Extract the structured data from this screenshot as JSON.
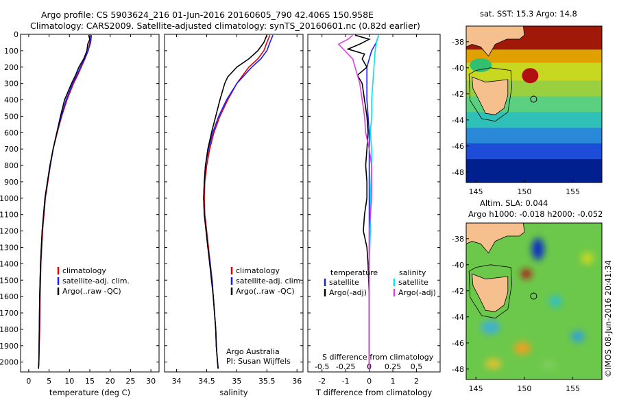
{
  "header": {
    "line1": "Argo profile: CS 5903624_216 01-Jun-2016 20160605_790 42.406S 150.958E",
    "line2": "Climatology: CARS2009. Satellite-adjusted climatology: synTS_20160601.nc (0.82d earlier)"
  },
  "colors": {
    "climatology": "#e00000",
    "satellite": "#1a1aff",
    "argo": "#000000",
    "sal_satellite": "#00e5ee",
    "sal_argo": "#e040e0",
    "land": "#f5c08e"
  },
  "chart_data": [
    {
      "type": "line",
      "panel": "temperature",
      "xlabel": "temperature (deg C)",
      "xlim": [
        -2,
        32
      ],
      "xticks": [
        0,
        5,
        10,
        15,
        20,
        25,
        30
      ],
      "ylim": [
        2060,
        0
      ],
      "yticks": [
        0,
        100,
        200,
        300,
        400,
        500,
        600,
        700,
        800,
        900,
        1000,
        1100,
        1200,
        1300,
        1400,
        1500,
        1600,
        1700,
        1800,
        1900,
        2000
      ],
      "legend": [
        "climatology",
        "satellite-adj. clim.",
        "Argo(..raw -QC)"
      ],
      "series": [
        {
          "name": "climatology",
          "depth": [
            5,
            50,
            100,
            150,
            200,
            250,
            300,
            400,
            500,
            600,
            700,
            800,
            900,
            1000,
            1200,
            1400,
            1600,
            1800,
            2000,
            2040
          ],
          "values": [
            15.3,
            15.0,
            14.6,
            13.8,
            12.9,
            12.0,
            11.0,
            9.4,
            8.1,
            7.0,
            6.0,
            5.3,
            4.7,
            4.1,
            3.4,
            3.0,
            2.8,
            2.7,
            2.5,
            2.4
          ]
        },
        {
          "name": "satellite-adj. clim.",
          "depth": [
            5,
            50,
            100,
            150,
            200,
            250,
            300,
            400,
            500,
            600,
            700,
            800,
            900,
            1000,
            1200,
            1400,
            1600,
            1800,
            2000,
            2040
          ],
          "values": [
            15.4,
            15.2,
            14.6,
            13.7,
            12.7,
            11.8,
            10.8,
            9.2,
            8.0,
            6.9,
            6.0,
            5.3,
            4.6,
            4.0,
            3.3,
            2.9,
            2.7,
            2.6,
            2.5,
            2.4
          ]
        },
        {
          "name": "Argo(..raw -QC)",
          "depth": [
            5,
            30,
            60,
            100,
            150,
            200,
            250,
            300,
            400,
            500,
            600,
            700,
            800,
            900,
            1000,
            1200,
            1400,
            1600,
            1800,
            2000,
            2040
          ],
          "values": [
            14.7,
            15.0,
            14.5,
            14.3,
            13.5,
            12.3,
            11.5,
            10.5,
            8.8,
            7.8,
            6.9,
            6.0,
            5.2,
            4.6,
            4.0,
            3.3,
            2.9,
            2.7,
            2.6,
            2.5,
            2.4
          ]
        }
      ]
    },
    {
      "type": "line",
      "panel": "salinity",
      "xlabel": "salinity",
      "xlim": [
        33.8,
        36.1
      ],
      "xticks": [
        34,
        34.5,
        35,
        35.5,
        36
      ],
      "ylim": [
        2060,
        0
      ],
      "legend": [
        "climatology",
        "satellite-adj. clim.",
        "Argo(..raw -QC)"
      ],
      "annotation": [
        "Argo Australia",
        "PI: Susan Wijffels"
      ],
      "series": [
        {
          "name": "climatology",
          "depth": [
            5,
            50,
            100,
            150,
            200,
            300,
            400,
            500,
            600,
            700,
            800,
            900,
            1000,
            1100,
            1200,
            1300,
            1400,
            1500,
            1600,
            1700,
            1800,
            1900,
            2000,
            2040
          ],
          "values": [
            35.55,
            35.5,
            35.45,
            35.35,
            35.2,
            35.0,
            34.85,
            34.72,
            34.62,
            34.55,
            34.5,
            34.47,
            34.46,
            34.47,
            34.5,
            34.53,
            34.56,
            34.59,
            34.61,
            34.63,
            34.65,
            34.66,
            34.68,
            34.69
          ]
        },
        {
          "name": "satellite-adj. clim.",
          "depth": [
            5,
            50,
            100,
            150,
            200,
            300,
            400,
            500,
            600,
            700,
            800,
            900,
            1000,
            1100,
            1200,
            1300,
            1400,
            1500,
            1600,
            1700,
            1800,
            1900,
            2000,
            2040
          ],
          "values": [
            35.6,
            35.55,
            35.5,
            35.4,
            35.25,
            35.0,
            34.83,
            34.7,
            34.6,
            34.53,
            34.48,
            34.46,
            34.45,
            34.46,
            34.49,
            34.52,
            34.56,
            34.59,
            34.61,
            34.63,
            34.65,
            34.66,
            34.68,
            34.69
          ]
        },
        {
          "name": "Argo(..raw -QC)",
          "depth": [
            5,
            50,
            100,
            150,
            200,
            260,
            300,
            400,
            500,
            600,
            700,
            800,
            900,
            1000,
            1100,
            1200,
            1300,
            1400,
            1500,
            1600,
            1700,
            1800,
            1900,
            2000,
            2040
          ],
          "values": [
            35.5,
            35.45,
            35.35,
            35.2,
            35.0,
            34.85,
            34.8,
            34.72,
            34.65,
            34.58,
            34.52,
            34.48,
            34.46,
            34.45,
            34.46,
            34.49,
            34.52,
            34.55,
            34.58,
            34.61,
            34.63,
            34.65,
            34.66,
            34.68,
            34.69
          ]
        }
      ]
    },
    {
      "type": "line",
      "panel": "difference",
      "xlabel": "T difference from climatology",
      "xlabel2": "S difference from climatology",
      "xlim": [
        -2.6,
        3.0
      ],
      "xticks": [
        -2,
        -1,
        0,
        1,
        2
      ],
      "xticks_top": [
        "-0.5",
        "-0.25",
        "0",
        "0.25",
        "0.5"
      ],
      "xticks_top_pos": [
        -2,
        -1,
        0,
        1,
        2
      ],
      "ylim": [
        2060,
        0
      ],
      "legend_temperature": {
        "title": "temperature",
        "items": [
          "satellite",
          "Argo(-adj)"
        ]
      },
      "legend_salinity": {
        "title": "salinity",
        "items": [
          "satellite",
          "Argo(-adj)"
        ]
      },
      "series": [
        {
          "name": "T satellite",
          "depth": [
            5,
            50,
            100,
            150,
            200,
            300,
            400,
            500,
            600,
            700,
            800,
            1000,
            1200,
            1400,
            1600,
            1800,
            2000,
            2040
          ],
          "values": [
            0.4,
            0.3,
            0.1,
            0.0,
            -0.1,
            -0.1,
            -0.1,
            -0.05,
            0.0,
            0.0,
            0.0,
            0.0,
            0.0,
            0.0,
            0.0,
            0.0,
            0.0,
            0.0
          ]
        },
        {
          "name": "T Argo(-adj)",
          "depth": [
            5,
            30,
            60,
            90,
            120,
            150,
            200,
            250,
            300,
            400,
            500,
            600,
            700,
            800,
            900,
            1000,
            1100,
            1200,
            1300,
            1400,
            1600,
            1800,
            2000,
            2040
          ],
          "values": [
            -0.6,
            0.0,
            -0.4,
            -0.9,
            -0.2,
            -0.3,
            -0.1,
            -0.5,
            -0.3,
            -0.2,
            -0.1,
            -0.05,
            -0.1,
            -0.15,
            -0.1,
            -0.1,
            -0.2,
            -0.25,
            -0.1,
            -0.05,
            0.0,
            0.0,
            0.0,
            0.0
          ]
        },
        {
          "name": "S satellite",
          "depth": [
            5,
            50,
            100,
            200,
            300,
            400,
            500,
            600,
            700,
            800,
            1000,
            1200,
            1400,
            1600,
            1800,
            2000,
            2040
          ],
          "values": [
            0.4,
            0.3,
            0.25,
            0.2,
            0.15,
            0.1,
            0.1,
            0.05,
            0.1,
            0.1,
            0.05,
            0.05,
            0.0,
            0.0,
            0.0,
            0.0,
            0.0
          ]
        },
        {
          "name": "S Argo(-adj)",
          "depth": [
            5,
            30,
            60,
            90,
            120,
            150,
            200,
            250,
            300,
            400,
            500,
            600,
            700,
            800,
            1000,
            1200,
            1400,
            1600,
            1800,
            2000,
            2040
          ],
          "values": [
            -0.7,
            -0.9,
            -1.3,
            -1.1,
            -0.9,
            -0.7,
            -0.6,
            -0.5,
            -0.4,
            -0.3,
            -0.2,
            -0.15,
            0.0,
            0.1,
            0.1,
            0.0,
            0.0,
            0.0,
            0.0,
            0.0,
            0.0
          ]
        }
      ]
    },
    {
      "type": "heatmap",
      "panel": "sst_map",
      "title": "sat. SST: 15.3  Argo: 14.8",
      "xticks": [
        145,
        150,
        155
      ],
      "yticks": [
        -38,
        -40,
        -42,
        -44,
        -46,
        -48
      ],
      "xlim": [
        144,
        158
      ],
      "ylim": [
        -48.8,
        -36.8
      ],
      "float_position": [
        150.958,
        -42.406
      ]
    },
    {
      "type": "heatmap",
      "panel": "sla_map",
      "title_line1": "Altim. SLA: 0.044",
      "title_line2": "Argo h1000: -0.018  h2000: -0.052",
      "xticks": [
        145,
        150,
        155
      ],
      "yticks": [
        -38,
        -40,
        -42,
        -44,
        -46,
        -48
      ],
      "xlim": [
        144,
        158
      ],
      "ylim": [
        -48.8,
        -36.8
      ],
      "float_position": [
        150.958,
        -42.406
      ]
    }
  ],
  "footer": {
    "stamp": "©IMOS 08-Jun-2016 20:41:34"
  }
}
